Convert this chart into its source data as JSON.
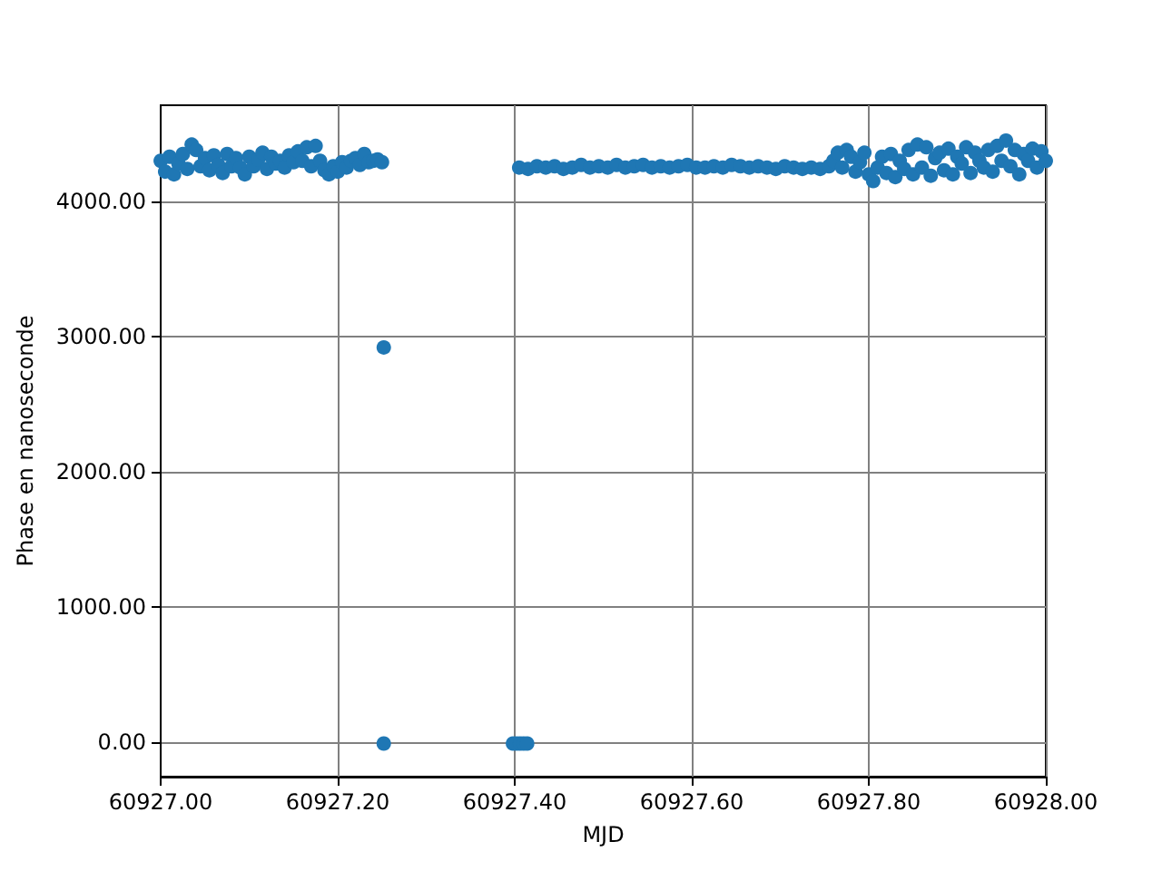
{
  "chart_data": {
    "type": "scatter",
    "xlabel": "MJD",
    "ylabel": "Phase en nanoseconde",
    "color": "#1f77b4",
    "marker": "circle",
    "grid": true,
    "x": [
      60927.0,
      60927.005,
      60927.01,
      60927.015,
      60927.02,
      60927.025,
      60927.03,
      60927.035,
      60927.04,
      60927.045,
      60927.05,
      60927.055,
      60927.06,
      60927.065,
      60927.07,
      60927.075,
      60927.08,
      60927.085,
      60927.09,
      60927.095,
      60927.1,
      60927.105,
      60927.11,
      60927.115,
      60927.12,
      60927.125,
      60927.13,
      60927.135,
      60927.14,
      60927.145,
      60927.15,
      60927.155,
      60927.16,
      60927.165,
      60927.17,
      60927.175,
      60927.18,
      60927.185,
      60927.19,
      60927.195,
      60927.2,
      60927.205,
      60927.21,
      60927.215,
      60927.22,
      60927.225,
      60927.23,
      60927.235,
      60927.24,
      60927.245,
      60927.25,
      60927.252,
      60927.252,
      60927.398,
      60927.402,
      60927.406,
      60927.41,
      60927.414,
      60927.405,
      60927.415,
      60927.425,
      60927.435,
      60927.445,
      60927.455,
      60927.465,
      60927.475,
      60927.485,
      60927.495,
      60927.505,
      60927.515,
      60927.525,
      60927.535,
      60927.545,
      60927.555,
      60927.565,
      60927.575,
      60927.585,
      60927.595,
      60927.605,
      60927.615,
      60927.625,
      60927.635,
      60927.645,
      60927.655,
      60927.665,
      60927.675,
      60927.685,
      60927.695,
      60927.705,
      60927.715,
      60927.725,
      60927.735,
      60927.745,
      60927.755,
      60927.76,
      60927.765,
      60927.77,
      60927.775,
      60927.78,
      60927.785,
      60927.79,
      60927.795,
      60927.8,
      60927.805,
      60927.81,
      60927.815,
      60927.82,
      60927.825,
      60927.83,
      60927.835,
      60927.84,
      60927.845,
      60927.85,
      60927.855,
      60927.86,
      60927.865,
      60927.87,
      60927.875,
      60927.88,
      60927.885,
      60927.89,
      60927.895,
      60927.9,
      60927.905,
      60927.91,
      60927.915,
      60927.92,
      60927.925,
      60927.93,
      60927.935,
      60927.94,
      60927.945,
      60927.95,
      60927.955,
      60927.96,
      60927.965,
      60927.97,
      60927.975,
      60927.98,
      60927.985,
      60927.99,
      60927.995,
      60928.0
    ],
    "values": [
      4300,
      4220,
      4330,
      4200,
      4280,
      4350,
      4240,
      4420,
      4380,
      4260,
      4320,
      4230,
      4340,
      4270,
      4210,
      4350,
      4260,
      4320,
      4250,
      4200,
      4330,
      4260,
      4310,
      4360,
      4240,
      4330,
      4280,
      4300,
      4250,
      4340,
      4290,
      4370,
      4300,
      4400,
      4260,
      4410,
      4300,
      4230,
      4200,
      4260,
      4220,
      4290,
      4250,
      4300,
      4320,
      4270,
      4350,
      4290,
      4300,
      4310,
      4290,
      2920,
      -10,
      -10,
      -10,
      -10,
      -10,
      -10,
      4250,
      4240,
      4260,
      4250,
      4260,
      4240,
      4250,
      4270,
      4250,
      4260,
      4250,
      4270,
      4250,
      4260,
      4270,
      4250,
      4260,
      4250,
      4260,
      4270,
      4250,
      4250,
      4260,
      4250,
      4270,
      4260,
      4250,
      4260,
      4250,
      4240,
      4260,
      4250,
      4240,
      4250,
      4240,
      4260,
      4300,
      4360,
      4250,
      4380,
      4330,
      4220,
      4290,
      4360,
      4200,
      4150,
      4250,
      4330,
      4210,
      4350,
      4180,
      4300,
      4240,
      4380,
      4200,
      4420,
      4250,
      4400,
      4190,
      4320,
      4360,
      4230,
      4390,
      4200,
      4330,
      4280,
      4400,
      4210,
      4360,
      4300,
      4250,
      4380,
      4220,
      4410,
      4300,
      4450,
      4260,
      4380,
      4200,
      4350,
      4300,
      4390,
      4250,
      4370,
      4300
    ],
    "xlim": [
      60927.0,
      60928.0
    ],
    "xticks": [
      {
        "value": 60927.0,
        "label": "60927.00"
      },
      {
        "value": 60927.2,
        "label": "60927.20"
      },
      {
        "value": 60927.4,
        "label": "60927.40"
      },
      {
        "value": 60927.6,
        "label": "60927.60"
      },
      {
        "value": 60927.8,
        "label": "60927.80"
      },
      {
        "value": 60928.0,
        "label": "60928.00"
      }
    ],
    "ylim": [
      -255,
      4711
    ],
    "yticks": [
      {
        "value": 0,
        "label": "0.00"
      },
      {
        "value": 1000,
        "label": "1000.00"
      },
      {
        "value": 2000,
        "label": "2000.00"
      },
      {
        "value": 3000,
        "label": "3000.00"
      },
      {
        "value": 4000,
        "label": "4000.00"
      }
    ]
  }
}
